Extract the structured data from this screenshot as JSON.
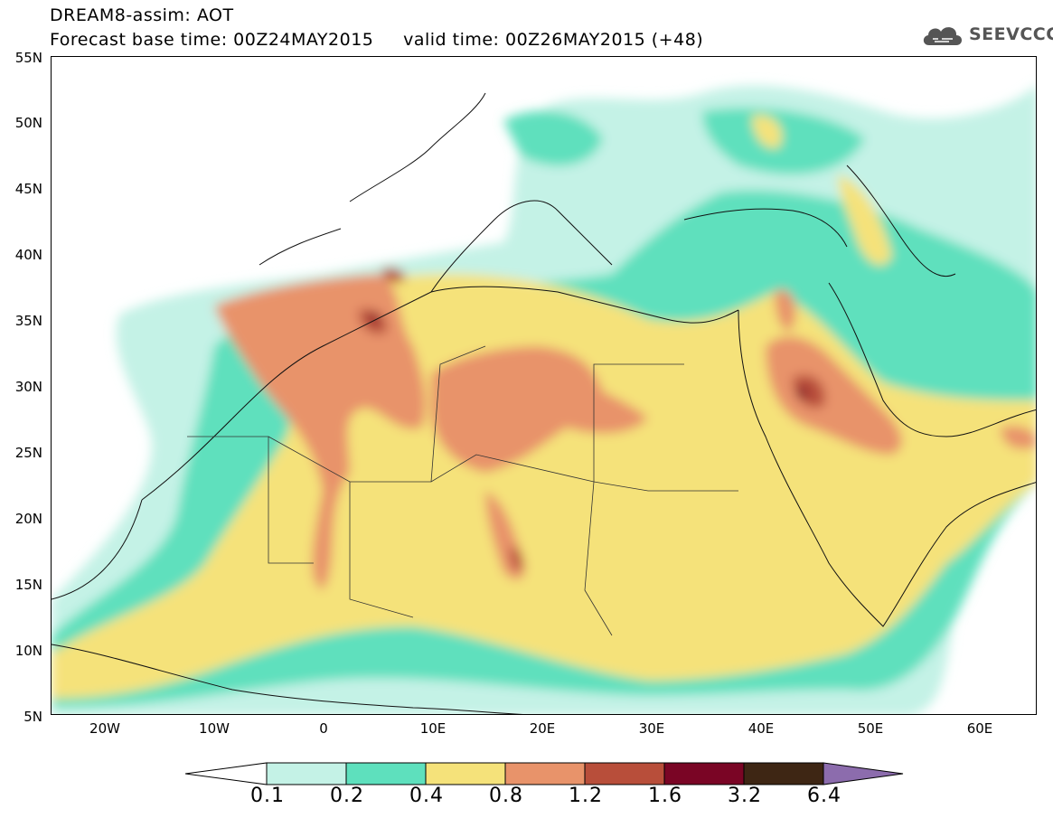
{
  "header": {
    "title_line1": "DREAM8-assim: AOT",
    "title_line2": "Forecast base time: 00Z24MAY2015     valid time: 00Z26MAY2015 (+48)",
    "logo_text": "SEEVCCC"
  },
  "map": {
    "region": "North Africa, Middle East and Southern Europe",
    "lat_labels": [
      "55N",
      "50N",
      "45N",
      "40N",
      "35N",
      "30N",
      "25N",
      "20N",
      "15N",
      "10N",
      "5N"
    ],
    "lon_labels": [
      "20W",
      "10W",
      "0",
      "10E",
      "20E",
      "30E",
      "40E",
      "50E",
      "60E"
    ]
  },
  "colorbar": {
    "labels": [
      "0.1",
      "0.2",
      "0.4",
      "0.8",
      "1.2",
      "1.6",
      "3.2",
      "6.4"
    ],
    "colors": [
      "#ffffff",
      "#c4f2e6",
      "#5ee0bd",
      "#f5e27a",
      "#e8936a",
      "#b84e3a",
      "#7a0525",
      "#3e2614",
      "#8c6cad"
    ]
  }
}
